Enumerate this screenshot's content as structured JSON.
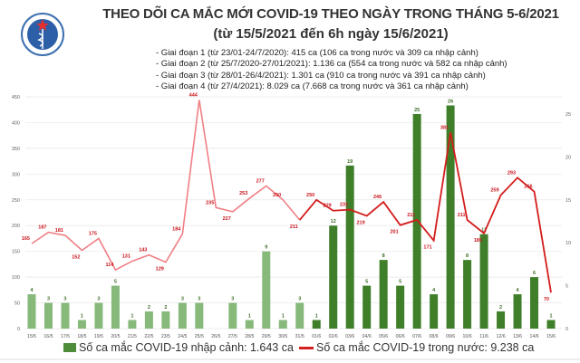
{
  "header": {
    "logo_text": "BỘ Y TẾ",
    "title": "THEO DÕI CA MẮC MỚI COVID-19 THEO NGÀY TRONG THÁNG 5-6/2021",
    "subtitle": "(từ 15/5/2021 đến 6h ngày 15/6/2021)",
    "notes": [
      "- Giai đoạn 1 (từ 23/01-24/7/2020): 415 ca (106 ca trong nước và 309 ca nhập cảnh)",
      "- Giai đoạn 2 (từ 25/7/2020-27/01/2021): 1.136 ca (554 ca trong nước và 582 ca nhập cảnh)",
      "- Giai đoạn 3 (từ 28/01-26/4/2021): 1.301 ca (910 ca trong nước và 391 ca nhập cảnh)",
      "- Giai đoạn 4 (từ 27/4/2021): 8.029 ca (7.668 ca trong nước và 361 ca nhập cảnh)"
    ]
  },
  "chart_data": {
    "type": "bar+line",
    "categories": [
      "15/5",
      "16/5",
      "17/5",
      "18/5",
      "19/5",
      "20/5",
      "21/5",
      "22/5",
      "23/5",
      "24/5",
      "25/5",
      "26/5",
      "27/5",
      "28/5",
      "29/5",
      "30/5",
      "31/5",
      "01/6",
      "02/6",
      "03/6",
      "04/6",
      "05/6",
      "06/6",
      "07/6",
      "08/6",
      "09/6",
      "10/6",
      "11/6",
      "12/6",
      "13/6",
      "14/6",
      "15/6"
    ],
    "series": [
      {
        "name": "Số ca mắc COVID-19 nhập cảnh: 1.643 ca",
        "type": "bar",
        "axis": "right",
        "values": [
          4,
          3,
          3,
          1,
          3,
          5,
          1,
          2,
          2,
          3,
          3,
          0,
          3,
          1,
          9,
          1,
          3,
          1,
          12,
          19,
          5,
          8,
          5,
          25,
          4,
          26,
          8,
          11,
          2,
          4,
          6,
          1
        ]
      },
      {
        "name": "Số ca mắc COVID-19 trong nước: 9.238 ca",
        "type": "line",
        "axis": "left",
        "values": [
          165,
          187,
          181,
          152,
          175,
          114,
          131,
          143,
          129,
          184,
          444,
          235,
          227,
          253,
          277,
          250,
          211,
          250,
          229,
          231,
          219,
          246,
          201,
          211,
          171,
          381,
          211,
          185,
          259,
          293,
          266,
          70
        ]
      }
    ],
    "left_axis": {
      "ylim": [
        0,
        450
      ],
      "ticks": [
        "0",
        "50",
        "100",
        "150",
        "200",
        "250",
        "300",
        "350",
        "400",
        "450"
      ]
    },
    "right_axis": {
      "ylim": [
        0,
        27
      ],
      "ticks": [
        "0",
        "5",
        "10",
        "15",
        "20",
        "25"
      ]
    },
    "grid": true,
    "legend": "bottom",
    "colors": {
      "bar_early": "#86b97a",
      "bar_late": "#3f7f2a",
      "line_early": "#f07f85",
      "line_late": "#d41c1c",
      "label_line": "#c8141c",
      "label_bar": "#3f6f2a"
    }
  }
}
